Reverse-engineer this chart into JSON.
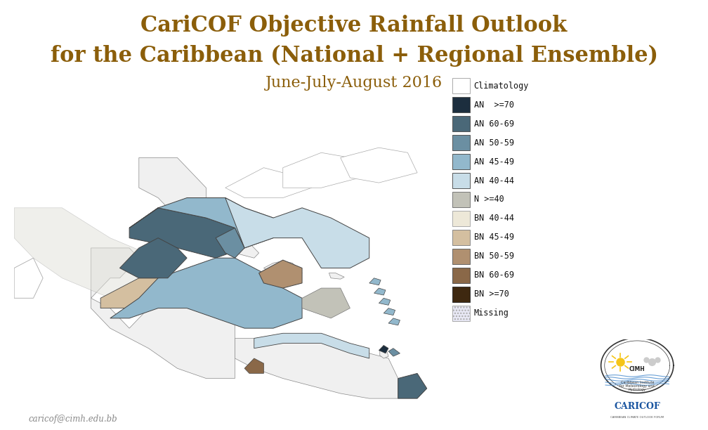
{
  "title_line1": "CariCOF Objective Rainfall Outlook",
  "title_line2": "for the Caribbean (National + Regional Ensemble)",
  "title_line3": "June-July-August 2016",
  "title_color": "#8B5E0A",
  "title_fontsize1": 22,
  "title_fontsize2": 22,
  "title_fontsize3": 16,
  "footer_text": "caricof@cimh.edu.bb",
  "footer_color": "#888888",
  "background_color": "#ffffff",
  "legend_entries": [
    {
      "label": "Climatology",
      "color": "#ffffff",
      "edgecolor": "#aaaaaa",
      "hatch": ""
    },
    {
      "label": "AN  >=70",
      "color": "#1c2e3e",
      "edgecolor": "#555555",
      "hatch": ""
    },
    {
      "label": "AN 60-69",
      "color": "#4a6878",
      "edgecolor": "#555555",
      "hatch": ""
    },
    {
      "label": "AN 50-59",
      "color": "#6b8fa2",
      "edgecolor": "#555555",
      "hatch": ""
    },
    {
      "label": "AN 45-49",
      "color": "#92b8cc",
      "edgecolor": "#555555",
      "hatch": ""
    },
    {
      "label": "AN 40-44",
      "color": "#c8dde8",
      "edgecolor": "#555555",
      "hatch": ""
    },
    {
      "label": "N >=40",
      "color": "#c2c2b8",
      "edgecolor": "#777777",
      "hatch": ""
    },
    {
      "label": "BN 40-44",
      "color": "#ede8d8",
      "edgecolor": "#aaaaaa",
      "hatch": ""
    },
    {
      "label": "BN 45-49",
      "color": "#d4bfa0",
      "edgecolor": "#888888",
      "hatch": ""
    },
    {
      "label": "BN 50-59",
      "color": "#b09070",
      "edgecolor": "#666666",
      "hatch": ""
    },
    {
      "label": "BN 60-69",
      "color": "#8a6848",
      "edgecolor": "#555555",
      "hatch": ""
    },
    {
      "label": "BN >=70",
      "color": "#3e2810",
      "edgecolor": "#333333",
      "hatch": ""
    },
    {
      "label": "Missing",
      "color": "#e8e8f5",
      "edgecolor": "#aaaaaa",
      "hatch": "...."
    }
  ],
  "map_bg": "#ffffff",
  "ocean_color": "#ffffff",
  "land_outline": "#888888",
  "region_edge": "#444444"
}
